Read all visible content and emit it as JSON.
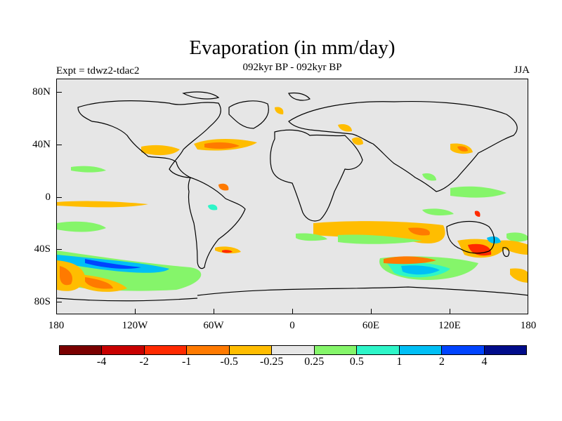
{
  "title": "Evaporation (in mm/day)",
  "subtitle": "092kyr BP - 092kyr BP",
  "experiment": "Expt = tdwz2-tdac2",
  "season": "JJA",
  "map": {
    "projection": "cylindrical-equidistant",
    "background_color": "#e6e6e6",
    "lat_labels": [
      "80N",
      "40N",
      "0",
      "40S",
      "80S"
    ],
    "lon_labels": [
      "180",
      "120W",
      "60W",
      "0",
      "60E",
      "120E",
      "180"
    ]
  },
  "colorbar": {
    "colors": [
      "#7a0000",
      "#c80000",
      "#ff2a00",
      "#ff7a00",
      "#ffbd00",
      "#e6e6e6",
      "#85f56a",
      "#2ef5c8",
      "#00bff5",
      "#0044ff",
      "#000c8a"
    ],
    "labels": [
      "-4",
      "-2",
      "-1",
      "-0.5",
      "-0.25",
      "0.25",
      "0.5",
      "1",
      "2",
      "4"
    ]
  }
}
